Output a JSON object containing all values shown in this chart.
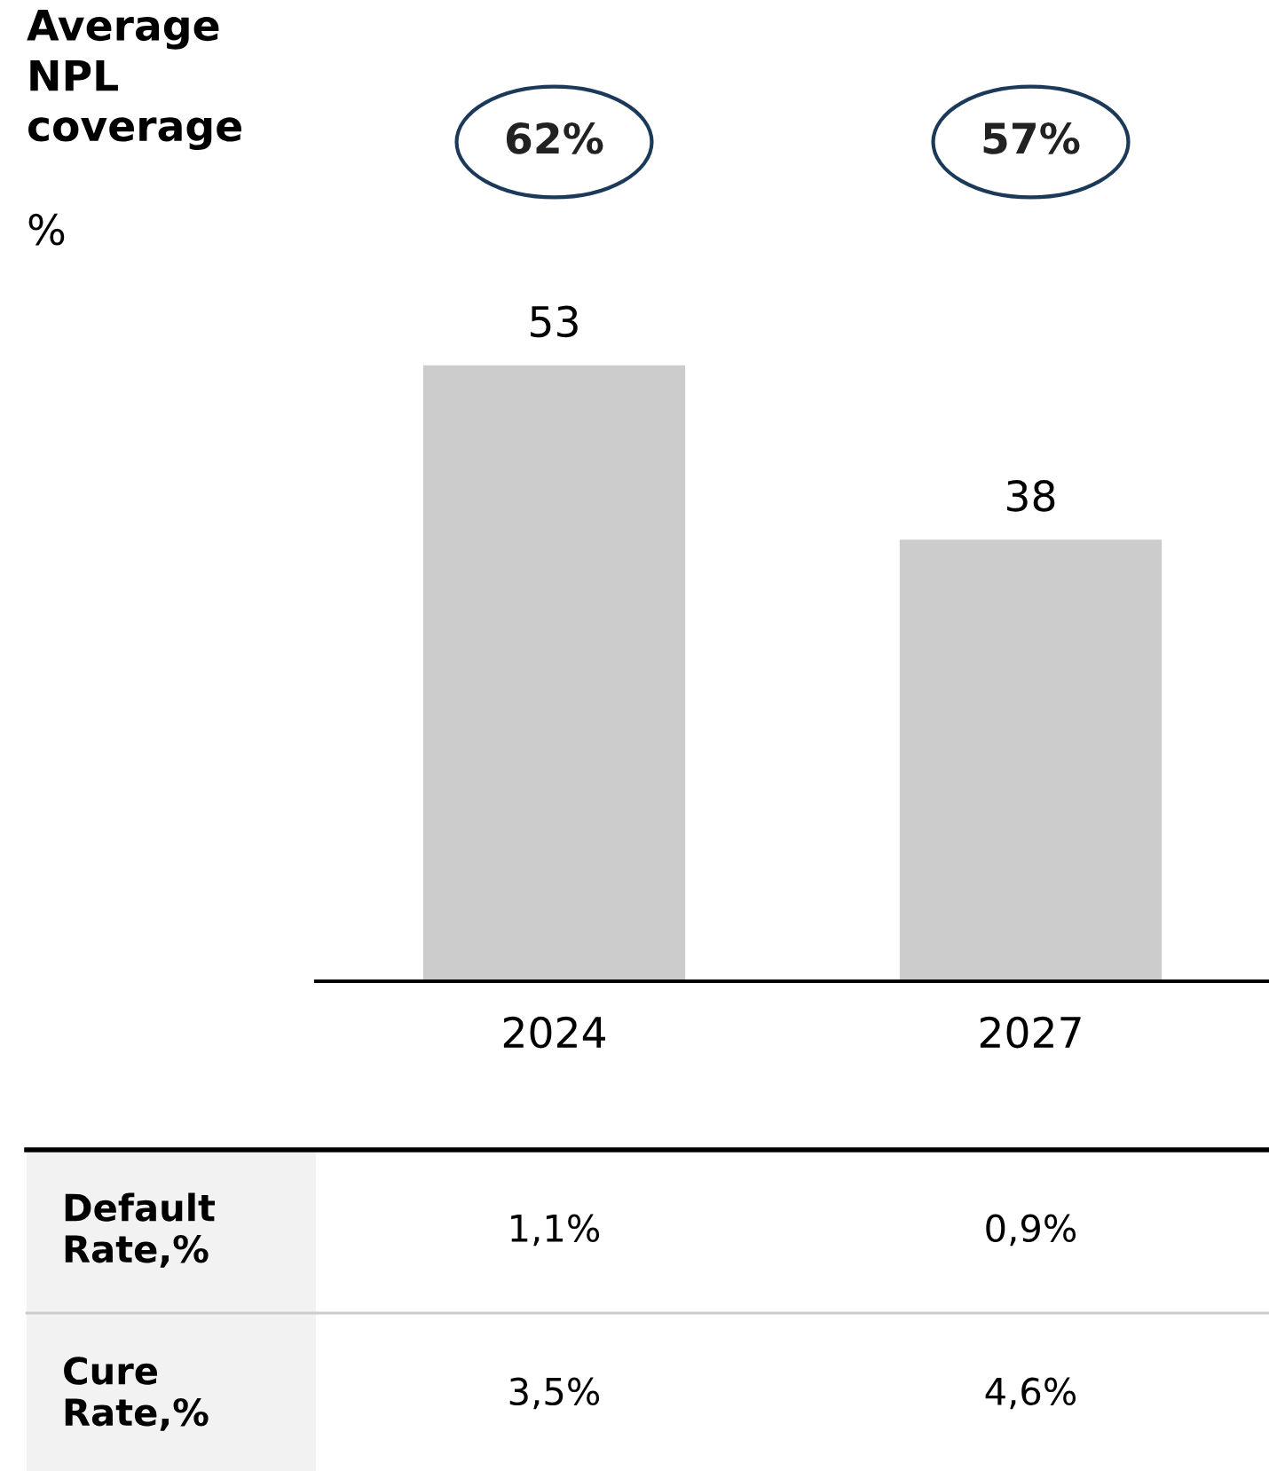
{
  "chart_data": {
    "type": "bar",
    "title": "Average\nNPL\ncoverage",
    "categories": [
      "2024",
      "2027"
    ],
    "values": [
      53,
      38
    ],
    "color": "#cccccc",
    "data_labels": true,
    "annotations": [
      "%",
      "62%",
      "57%",
      "Default Rate,%",
      "1,1%",
      "0,9%",
      "Cure Rate,%",
      "3,5%",
      "4,6%"
    ]
  }
}
